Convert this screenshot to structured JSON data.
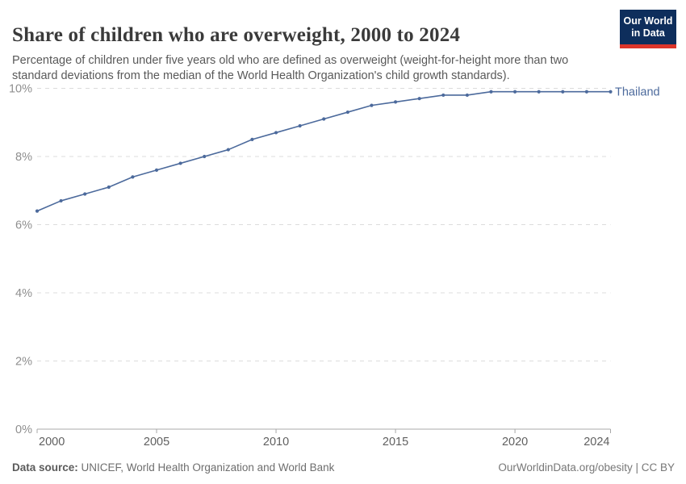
{
  "header": {
    "title": "Share of children who are overweight, 2000 to 2024",
    "subtitle": "Percentage of children under five years old who are defined as overweight (weight-for-height more than two standard deviations from the median of the World Health Organization's child growth standards)."
  },
  "logo": {
    "line1": "Our World",
    "line2": "in Data",
    "bg_color": "#0e2e5c",
    "accent_color": "#dc352a"
  },
  "chart_data": {
    "type": "line",
    "title": "Share of children who are overweight, 2000 to 2024",
    "xlabel": "",
    "ylabel": "",
    "xlim": [
      2000,
      2024
    ],
    "ylim": [
      0,
      10
    ],
    "xticks": [
      2000,
      2005,
      2010,
      2015,
      2020,
      2024
    ],
    "yticks": [
      0,
      2,
      4,
      6,
      8,
      10
    ],
    "ytick_suffix": "%",
    "grid": "horizontal-dashed",
    "legend_position": "right-of-line",
    "x": [
      2000,
      2001,
      2002,
      2003,
      2004,
      2005,
      2006,
      2007,
      2008,
      2009,
      2010,
      2011,
      2012,
      2013,
      2014,
      2015,
      2016,
      2017,
      2018,
      2019,
      2020,
      2021,
      2022,
      2023,
      2024
    ],
    "series": [
      {
        "name": "Thailand",
        "color": "#4C6A9C",
        "values": [
          6.4,
          6.7,
          6.9,
          7.1,
          7.4,
          7.6,
          7.8,
          8.0,
          8.2,
          8.5,
          8.7,
          8.9,
          9.1,
          9.3,
          9.5,
          9.6,
          9.7,
          9.8,
          9.8,
          9.9,
          9.9,
          9.9,
          9.9,
          9.9,
          9.9
        ]
      }
    ]
  },
  "colors": {
    "line": "#4C6A9C",
    "grid": "#dcdcdc",
    "axis": "#a8a8a8",
    "ytick_label": "#8f8f8f",
    "xtick_label": "#606060"
  },
  "footer": {
    "source_label": "Data source:",
    "source_value": "UNICEF, World Health Organization and World Bank",
    "link": "OurWorldinData.org/obesity | CC BY"
  }
}
